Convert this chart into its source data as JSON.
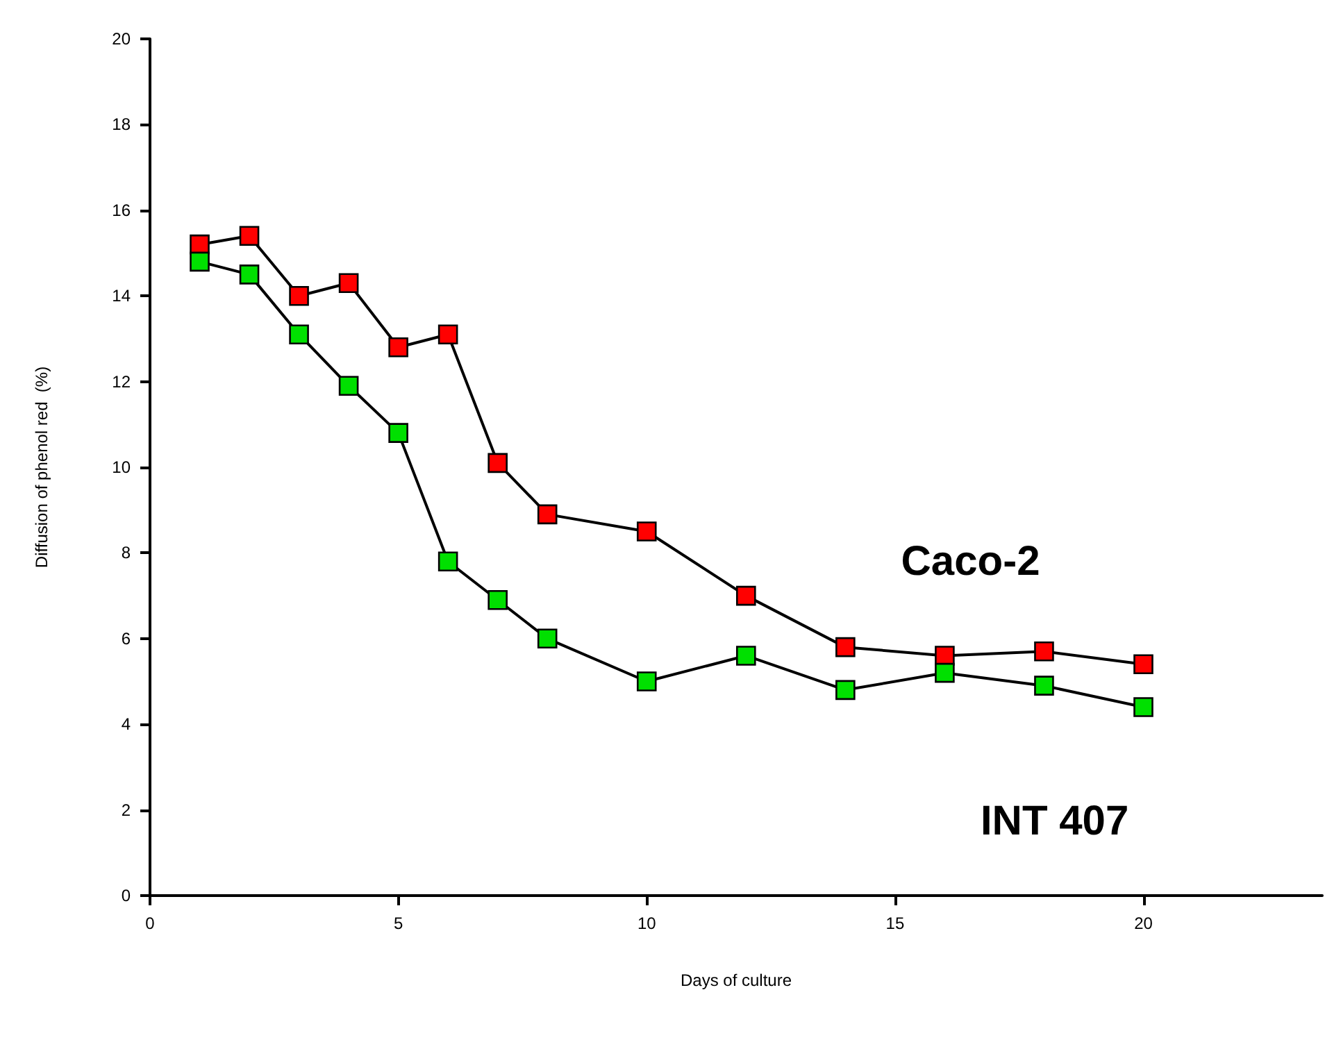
{
  "chart_data": {
    "type": "line",
    "xlabel": "Days of culture",
    "ylabel": "Diffusion of phenol red  (%)",
    "x": [
      1,
      2,
      3,
      4,
      5,
      6,
      7,
      8,
      10,
      12,
      14,
      16,
      18,
      20
    ],
    "series": [
      {
        "name": "Caco-2",
        "color": "#ff0000",
        "values": [
          15.2,
          15.4,
          14.0,
          14.3,
          12.8,
          13.1,
          10.1,
          8.9,
          8.5,
          7.0,
          5.8,
          5.6,
          5.7,
          5.4
        ]
      },
      {
        "name": "INT 407",
        "color": "#00e000",
        "values": [
          14.8,
          14.5,
          13.1,
          11.9,
          10.8,
          7.8,
          6.9,
          6.0,
          5.0,
          5.6,
          4.8,
          5.2,
          4.9,
          4.4
        ]
      }
    ],
    "xlim": [
      0,
      23.6
    ],
    "xticks": [
      0,
      5,
      10,
      15,
      20
    ],
    "ylim": [
      0,
      20
    ],
    "yticks": [
      0,
      2,
      4,
      6,
      8,
      10,
      12,
      14,
      16,
      18,
      20
    ],
    "grid": false,
    "legend": false,
    "marker": "square",
    "line_style": "solid"
  }
}
